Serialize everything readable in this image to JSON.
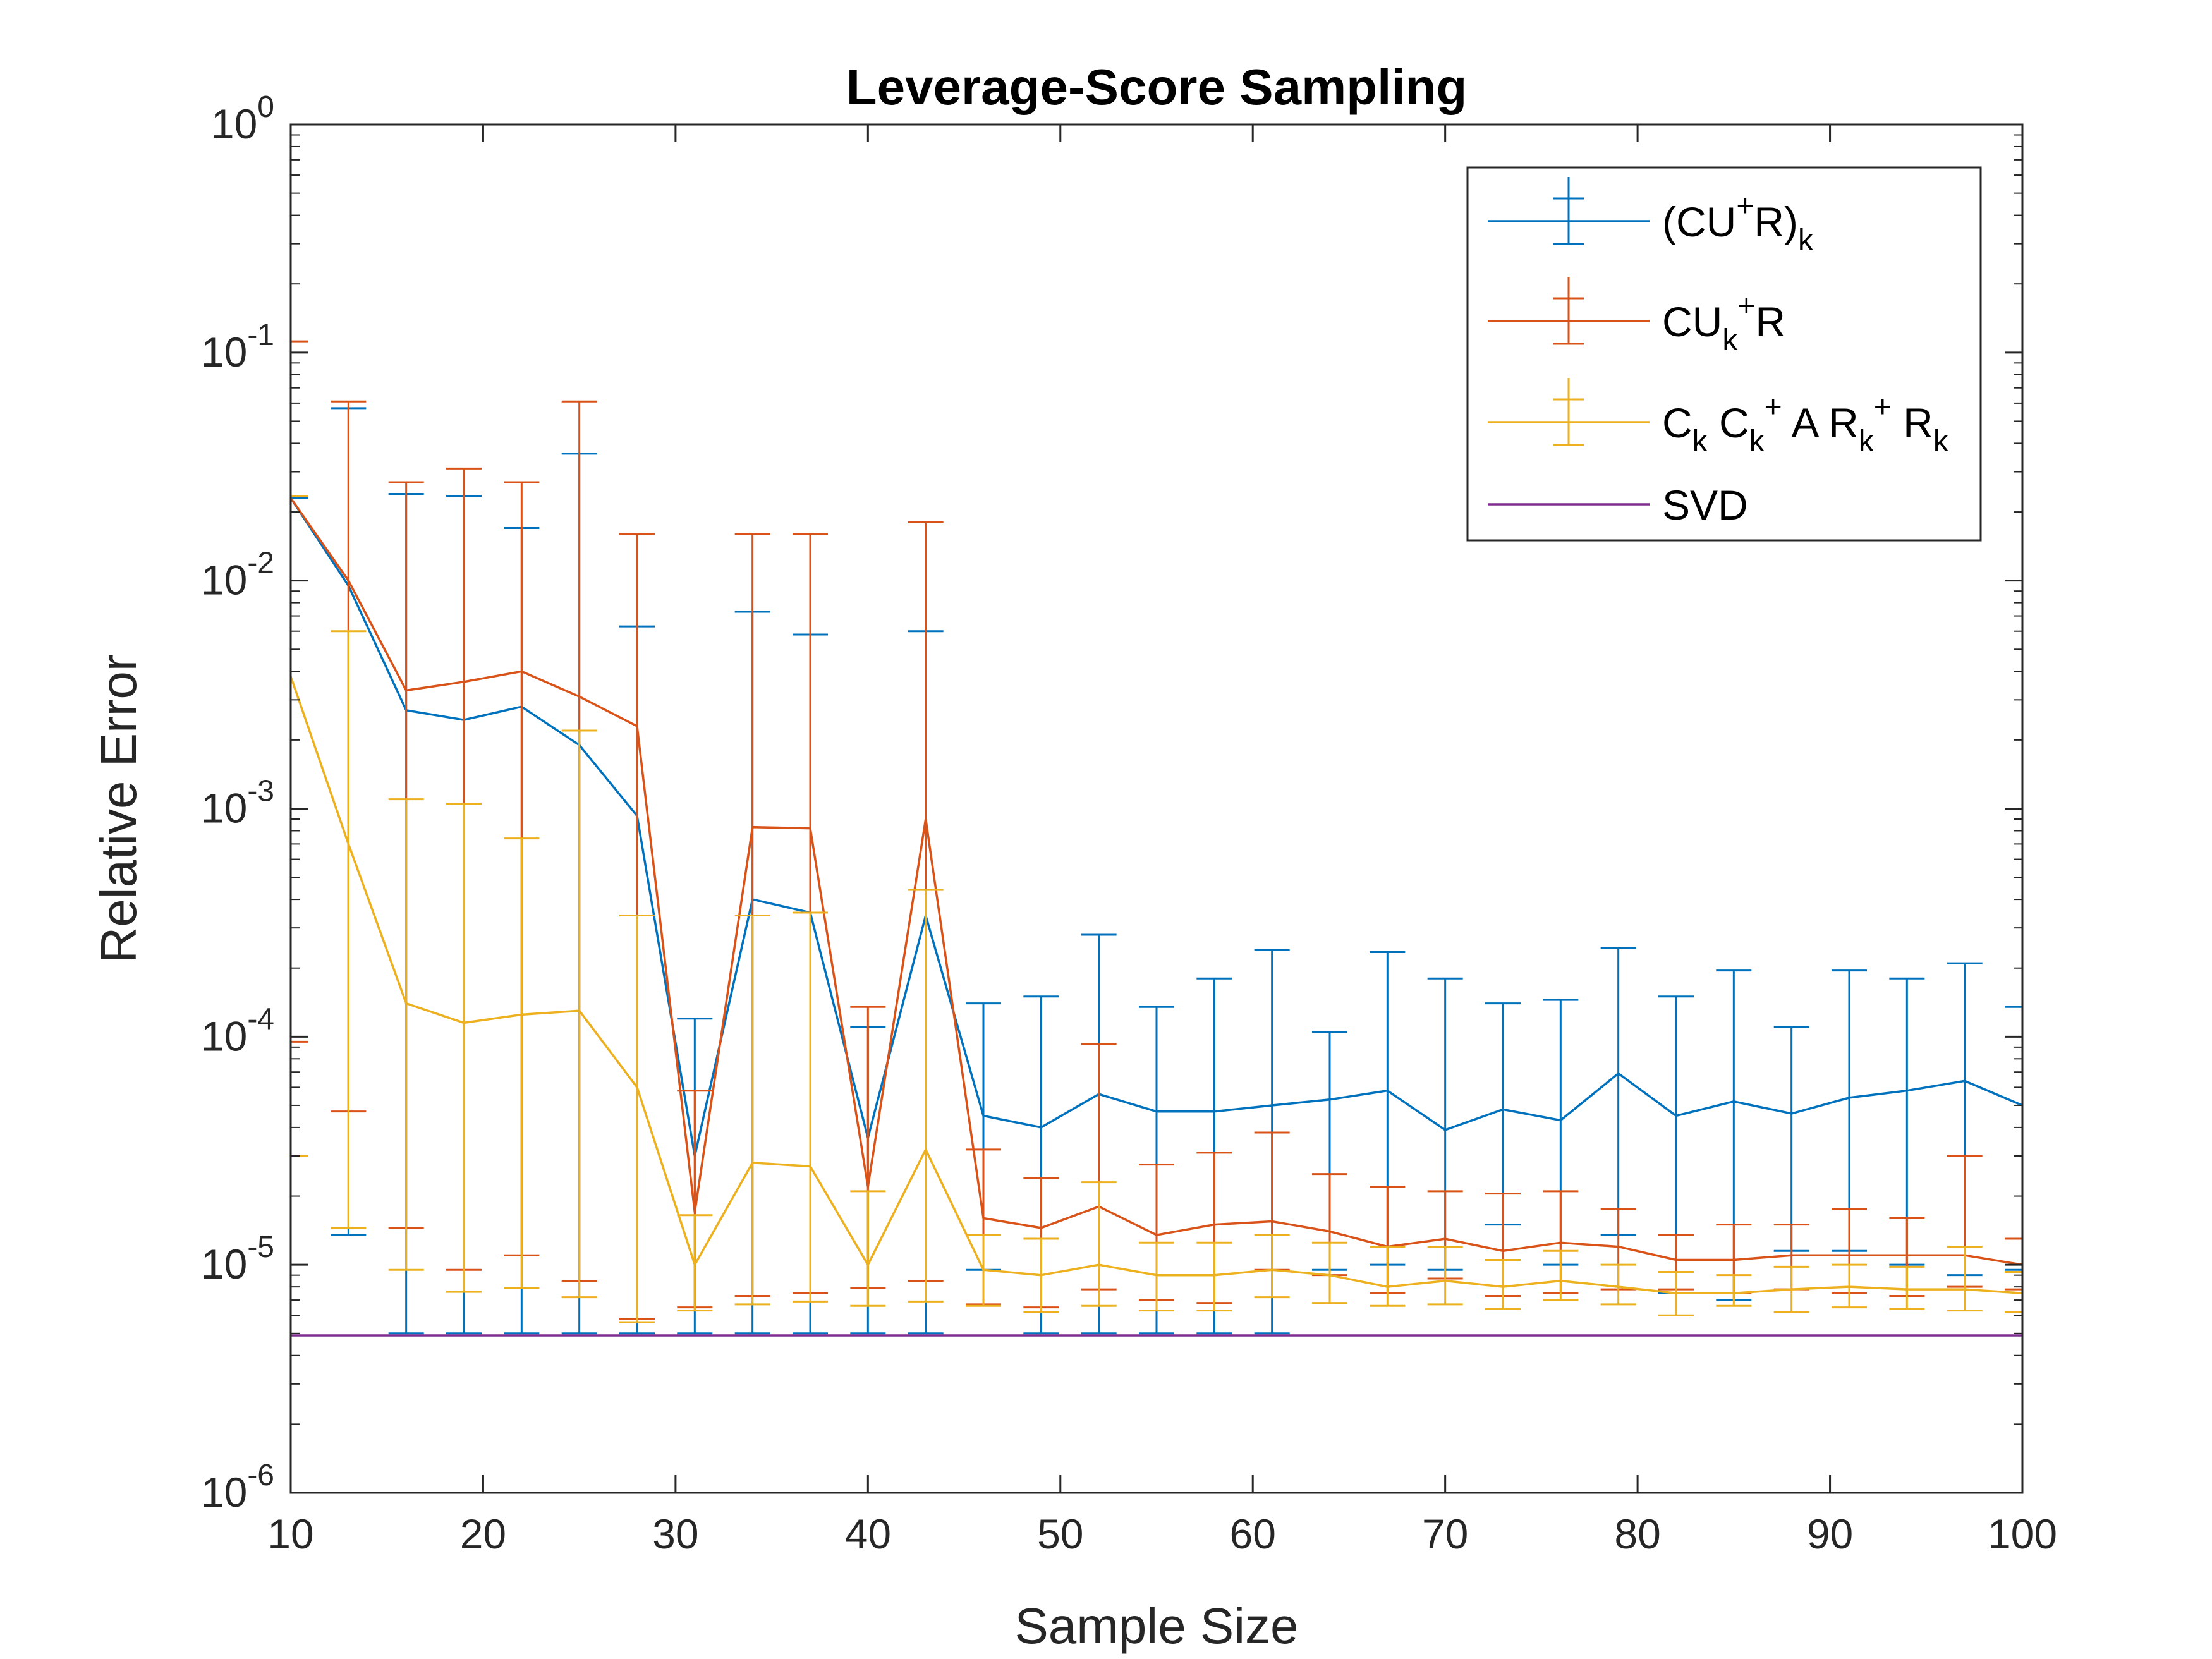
{
  "chart_data": {
    "type": "line",
    "title": "Leverage-Score Sampling",
    "xlabel": "Sample Size",
    "ylabel": "Relative Error",
    "xlim": [
      10,
      100
    ],
    "ylim": [
      1e-06,
      1
    ],
    "yscale": "log",
    "grid": false,
    "legend_position": "top-right",
    "x_ticks": [
      10,
      20,
      30,
      40,
      50,
      60,
      70,
      80,
      90,
      100
    ],
    "x_tick_labels": [
      "10",
      "20",
      "30",
      "40",
      "50",
      "60",
      "70",
      "80",
      "90",
      "100"
    ],
    "y_ticks": [
      {
        "value": 1e-06,
        "base": "10",
        "exp": "-6"
      },
      {
        "value": 1e-05,
        "base": "10",
        "exp": "-5"
      },
      {
        "value": 0.0001,
        "base": "10",
        "exp": "-4"
      },
      {
        "value": 0.001,
        "base": "10",
        "exp": "-3"
      },
      {
        "value": 0.01,
        "base": "10",
        "exp": "-2"
      },
      {
        "value": 0.1,
        "base": "10",
        "exp": "-1"
      },
      {
        "value": 1,
        "base": "10",
        "exp": "0"
      }
    ],
    "x": [
      10,
      13,
      16,
      19,
      22,
      25,
      28,
      31,
      34,
      37,
      40,
      43,
      46,
      49,
      52,
      55,
      58,
      61,
      64,
      67,
      70,
      73,
      76,
      79,
      82,
      85,
      88,
      91,
      94,
      97,
      100
    ],
    "series": [
      {
        "name": "(CU+R)k",
        "legend": [
          {
            "t": "(CU",
            "s": ""
          },
          {
            "t": "+",
            "s": "sup"
          },
          {
            "t": "R)",
            "s": ""
          },
          {
            "t": "k",
            "s": "sub"
          }
        ],
        "color": "#0072BD",
        "values": [
          0.023,
          0.0095,
          0.0027,
          0.00245,
          0.0028,
          0.0019,
          0.00093,
          3e-05,
          0.0004,
          0.00035,
          3.6e-05,
          0.00034,
          4.5e-05,
          4e-05,
          5.6e-05,
          4.7e-05,
          4.7e-05,
          5e-05,
          5.3e-05,
          5.8e-05,
          3.9e-05,
          4.8e-05,
          4.3e-05,
          6.9e-05,
          4.5e-05,
          5.2e-05,
          4.6e-05,
          5.4e-05,
          5.8e-05,
          6.4e-05,
          5e-05
        ],
        "lower": [
          1e-06,
          1.35e-05,
          5e-06,
          5e-06,
          5e-06,
          5e-06,
          5e-06,
          5e-06,
          5e-06,
          5e-06,
          5e-06,
          5e-06,
          9.5e-06,
          5e-06,
          5e-06,
          5e-06,
          5e-06,
          5e-06,
          9.5e-06,
          1e-05,
          9.5e-06,
          1.5e-05,
          1e-05,
          1.35e-05,
          7.5e-06,
          7e-06,
          1.15e-05,
          1.15e-05,
          1e-05,
          9e-06,
          9.5e-06
        ],
        "upper": [
          0.023,
          0.057,
          0.024,
          0.0235,
          0.017,
          0.036,
          0.0063,
          0.00012,
          0.0073,
          0.0058,
          0.00011,
          0.006,
          0.00014,
          0.00015,
          0.00028,
          0.000135,
          0.00018,
          0.00024,
          0.000105,
          0.000235,
          0.00018,
          0.00014,
          0.000145,
          0.000245,
          0.00015,
          0.000195,
          0.00011,
          0.000195,
          0.00018,
          0.00021,
          0.000135
        ]
      },
      {
        "name": "CUk+R",
        "legend": [
          {
            "t": "CU",
            "s": ""
          },
          {
            "t": "k",
            "s": "sub"
          },
          {
            "t": "+",
            "s": "sup"
          },
          {
            "t": "R",
            "s": ""
          }
        ],
        "color": "#D95319",
        "values": [
          0.023,
          0.01,
          0.0033,
          0.0036,
          0.004,
          0.0031,
          0.0023,
          1.7e-05,
          0.00083,
          0.00082,
          2.2e-05,
          0.0009,
          1.6e-05,
          1.45e-05,
          1.8e-05,
          1.35e-05,
          1.5e-05,
          1.55e-05,
          1.4e-05,
          1.2e-05,
          1.3e-05,
          1.15e-05,
          1.25e-05,
          1.2e-05,
          1.05e-05,
          1.05e-05,
          1.1e-05,
          1.1e-05,
          1.1e-05,
          1.1e-05,
          1e-05
        ],
        "lower": [
          9.5e-05,
          4.7e-05,
          1.45e-05,
          9.5e-06,
          1.1e-05,
          8.5e-06,
          5.8e-06,
          6.5e-06,
          7.3e-06,
          7.5e-06,
          7.9e-06,
          8.5e-06,
          6.7e-06,
          6.5e-06,
          7.8e-06,
          7e-06,
          6.8e-06,
          9.5e-06,
          9e-06,
          7.5e-06,
          8.7e-06,
          7.3e-06,
          7.5e-06,
          7.8e-06,
          7.8e-06,
          7.5e-06,
          7.8e-06,
          7.5e-06,
          7.3e-06,
          8e-06,
          7.8e-06
        ],
        "upper": [
          0.112,
          0.061,
          0.027,
          0.031,
          0.027,
          0.061,
          0.016,
          5.8e-05,
          0.016,
          0.016,
          0.000135,
          0.018,
          3.2e-05,
          2.4e-05,
          9.3e-05,
          2.75e-05,
          3.1e-05,
          3.8e-05,
          2.5e-05,
          2.2e-05,
          2.1e-05,
          2.05e-05,
          2.1e-05,
          1.75e-05,
          1.35e-05,
          1.5e-05,
          1.5e-05,
          1.75e-05,
          1.6e-05,
          3e-05,
          1.3e-05
        ]
      },
      {
        "name": "Ck Ck+ A Rk+ Rk",
        "legend": [
          {
            "t": "C",
            "s": ""
          },
          {
            "t": "k",
            "s": "sub"
          },
          {
            "t": " C",
            "s": ""
          },
          {
            "t": "k",
            "s": "sub"
          },
          {
            "t": "+",
            "s": "sup"
          },
          {
            "t": " A R",
            "s": ""
          },
          {
            "t": "k",
            "s": "sub"
          },
          {
            "t": "+",
            "s": "sup"
          },
          {
            "t": " R",
            "s": ""
          },
          {
            "t": "k",
            "s": "sub"
          }
        ],
        "color": "#EDB120",
        "values": [
          0.0038,
          0.0007,
          0.00014,
          0.000115,
          0.000125,
          0.00013,
          6e-05,
          1e-05,
          2.8e-05,
          2.7e-05,
          1e-05,
          3.2e-05,
          9.5e-06,
          9e-06,
          1e-05,
          9e-06,
          9e-06,
          9.5e-06,
          9e-06,
          8e-06,
          8.5e-06,
          8e-06,
          8.5e-06,
          8e-06,
          7.5e-06,
          7.5e-06,
          7.8e-06,
          8e-06,
          7.8e-06,
          7.8e-06,
          7.5e-06
        ],
        "lower": [
          3e-05,
          1.45e-05,
          9.5e-06,
          7.6e-06,
          7.9e-06,
          7.2e-06,
          5.6e-06,
          6.3e-06,
          6.7e-06,
          6.9e-06,
          6.6e-06,
          6.9e-06,
          6.6e-06,
          6.2e-06,
          6.6e-06,
          6.3e-06,
          6.3e-06,
          7.2e-06,
          6.8e-06,
          6.6e-06,
          6.7e-06,
          6.4e-06,
          7e-06,
          6.7e-06,
          6e-06,
          6.6e-06,
          6.2e-06,
          6.5e-06,
          6.4e-06,
          6.3e-06,
          6.2e-06
        ],
        "upper": [
          0.0235,
          0.006,
          0.0011,
          0.00105,
          0.00074,
          0.0022,
          0.00034,
          1.65e-05,
          0.00034,
          0.00035,
          2.1e-05,
          0.00044,
          1.35e-05,
          1.3e-05,
          2.3e-05,
          1.25e-05,
          1.25e-05,
          1.35e-05,
          1.25e-05,
          1.2e-05,
          1.2e-05,
          1.05e-05,
          1.15e-05,
          1e-05,
          9.3e-06,
          9e-06,
          9.8e-06,
          1e-05,
          9.8e-06,
          1.2e-05,
          9.3e-06
        ]
      },
      {
        "name": "SVD",
        "legend": [
          {
            "t": "SVD",
            "s": ""
          }
        ],
        "color": "#7E2F8E",
        "values": [
          4.9e-06,
          4.9e-06,
          4.9e-06,
          4.9e-06,
          4.9e-06,
          4.9e-06,
          4.9e-06,
          4.9e-06,
          4.9e-06,
          4.9e-06,
          4.9e-06,
          4.9e-06,
          4.9e-06,
          4.9e-06,
          4.9e-06,
          4.9e-06,
          4.9e-06,
          4.9e-06,
          4.9e-06,
          4.9e-06,
          4.9e-06,
          4.9e-06,
          4.9e-06,
          4.9e-06,
          4.9e-06,
          4.9e-06,
          4.9e-06,
          4.9e-06,
          4.9e-06,
          4.9e-06,
          4.9e-06
        ]
      }
    ]
  }
}
